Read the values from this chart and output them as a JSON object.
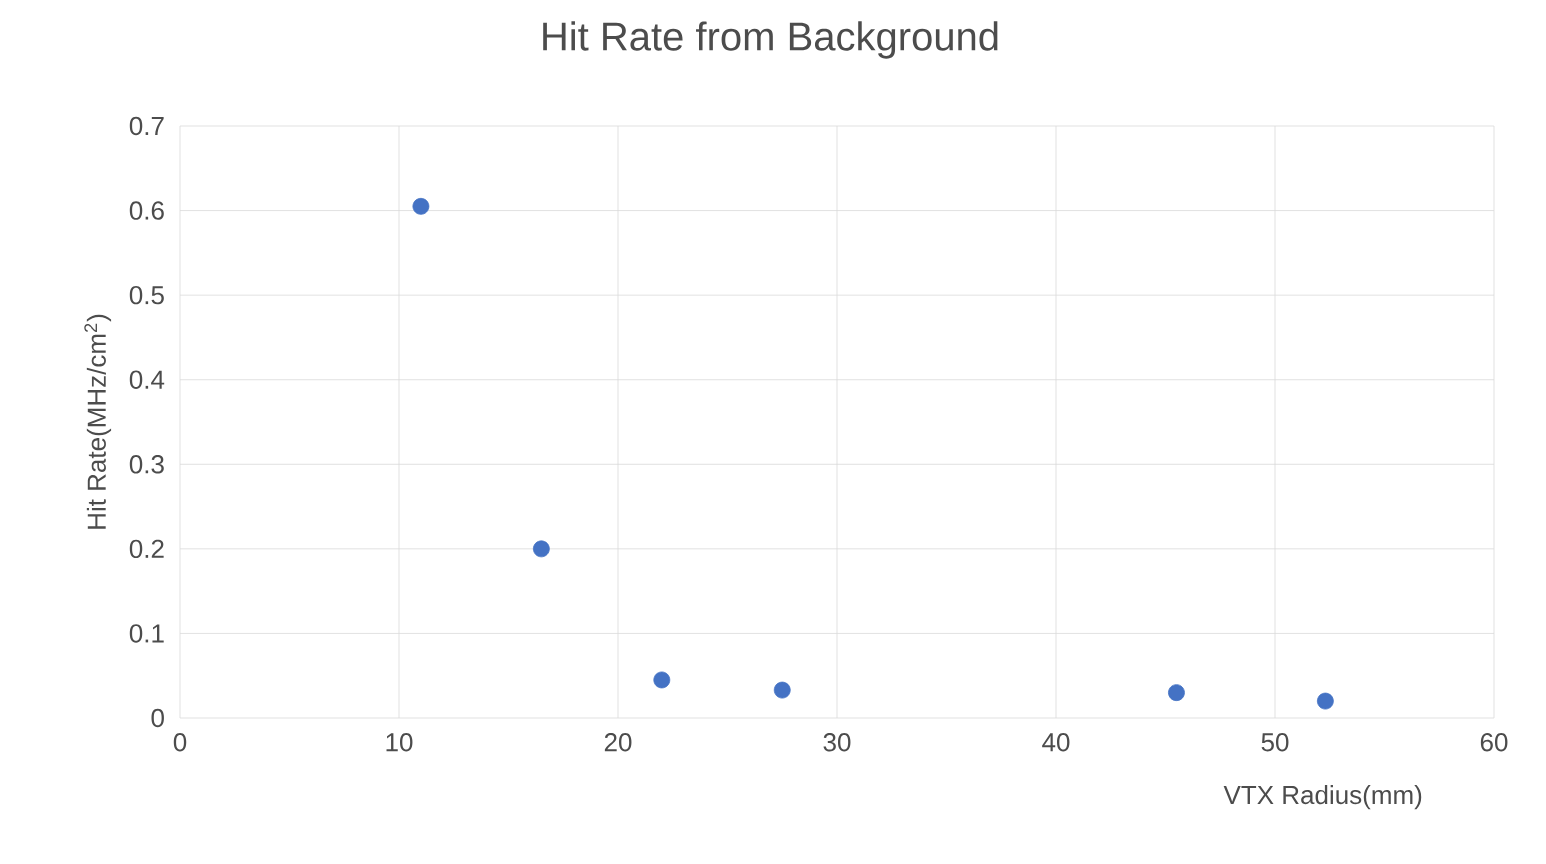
{
  "chart_data": {
    "type": "scatter",
    "title": "Hit Rate from Background",
    "xlabel": "VTX Radius(mm)",
    "ylabel": "Hit Rate(MHz/cm$^{2}$)",
    "x": [
      11,
      16.5,
      22,
      27.5,
      45.5,
      52.3
    ],
    "series": [
      {
        "color": "#4472c4",
        "values": [
          0.605,
          0.2,
          0.045,
          0.033,
          0.03,
          0.02
        ]
      }
    ],
    "xlim": [
      0,
      60
    ],
    "xticks": [
      0,
      10,
      20,
      30,
      40,
      50,
      60
    ],
    "ylim": [
      0,
      0.7
    ],
    "yticks": [
      0,
      0.1,
      0.2,
      0.3,
      0.4,
      0.5,
      0.6,
      0.7
    ],
    "grid": true
  }
}
